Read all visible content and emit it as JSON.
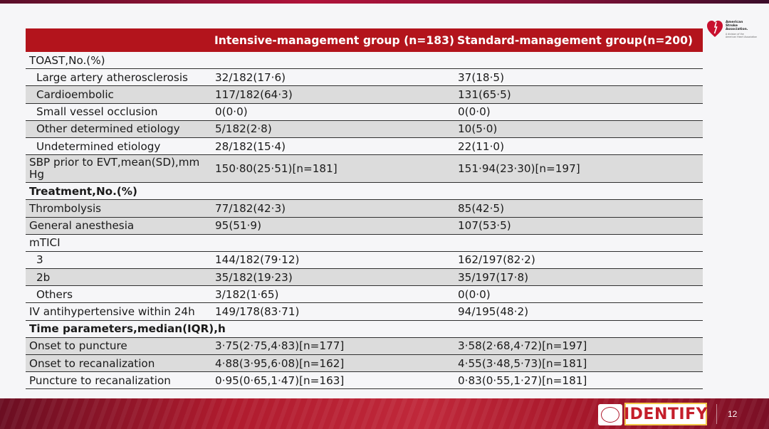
{
  "header": {
    "col2": "Intensive-management group (n=183)",
    "col3": "Standard-management group(n=200)"
  },
  "logo": {
    "line1": "American",
    "line2": "Stroke",
    "line3": "Association.",
    "sub1": "A division of the",
    "sub2": "American Heart Association"
  },
  "rows": [
    {
      "label": "TOAST,No.(%)",
      "c2": "",
      "c3": ""
    },
    {
      "label": "Large artery atherosclerosis",
      "c2": "32/182(17·6)",
      "c3": "37(18·5)"
    },
    {
      "label": "Cardioembolic",
      "c2": "117/182(64·3)",
      "c3": "131(65·5)"
    },
    {
      "label": "Small vessel occlusion",
      "c2": "0(0·0)",
      "c3": "0(0·0)"
    },
    {
      "label": "Other determined etiology",
      "c2": "5/182(2·8)",
      "c3": "10(5·0)"
    },
    {
      "label": "Undetermined etiology",
      "c2": "28/182(15·4)",
      "c3": "22(11·0)"
    },
    {
      "label": "SBP prior to EVT,mean(SD),mm Hg",
      "c2": "150·80(25·51)[n=181]",
      "c3": "151·94(23·30)[n=197]"
    },
    {
      "label": "Treatment,No.(%)",
      "c2": "",
      "c3": ""
    },
    {
      "label": "Thrombolysis",
      "c2": "77/182(42·3)",
      "c3": "85(42·5)"
    },
    {
      "label": "General anesthesia",
      "c2": "95(51·9)",
      "c3": "107(53·5)"
    },
    {
      "label": "mTICI",
      "c2": "",
      "c3": ""
    },
    {
      "label": "3",
      "c2": "144/182(79·12)",
      "c3": "162/197(82·2)"
    },
    {
      "label": "2b",
      "c2": "35/182(19·23)",
      "c3": "35/197(17·8)"
    },
    {
      "label": "Others",
      "c2": "3/182(1·65)",
      "c3": "0(0·0)"
    },
    {
      "label": "IV antihypertensive within 24h",
      "c2": "149/178(83·71)",
      "c3": "94/195(48·2)"
    },
    {
      "label": "Time parameters,median(IQR),h",
      "c2": "",
      "c3": ""
    },
    {
      "label": "Onset to puncture",
      "c2": "3·75(2·75,4·83)[n=177]",
      "c3": "3·58(2·68,4·72)[n=197]"
    },
    {
      "label": "Onset to recanalization",
      "c2": "4·88(3·95,6·08)[n=162]",
      "c3": "4·55(3·48,5·73)[n=181]"
    },
    {
      "label": "Puncture to recanalization",
      "c2": "0·95(0·65,1·47)[n=163]",
      "c3": "0·83(0·55,1·27)[n=181]"
    }
  ],
  "footer": {
    "brand": "IDENTIFY",
    "page": "12"
  },
  "colors": {
    "header_bg": "#b3141c",
    "row_shade": "#dcdcdc",
    "footer_red": "#b01b2e",
    "brand_border": "#f3c84a"
  }
}
